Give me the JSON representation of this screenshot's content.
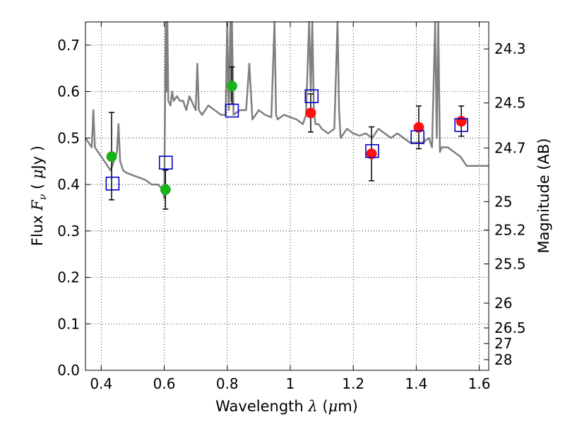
{
  "chart_data": {
    "type": "scatter",
    "xlabel": "Wavelength  λ (μm)",
    "ylabel": "Flux  Fν  ( μJy )",
    "y2label": "Magnitude (AB)",
    "xlim": [
      0.35,
      1.63
    ],
    "ylim": [
      0.0,
      0.75
    ],
    "xticks": [
      "0.4",
      "0.6",
      "0.8",
      "1",
      "1.2",
      "1.4",
      "1.6"
    ],
    "xtick_values": [
      0.4,
      0.6,
      0.8,
      1.0,
      1.2,
      1.4,
      1.6
    ],
    "yticks": [
      "0.0",
      "0.1",
      "0.2",
      "0.3",
      "0.4",
      "0.5",
      "0.6",
      "0.7"
    ],
    "ytick_values": [
      0.0,
      0.1,
      0.2,
      0.3,
      0.4,
      0.5,
      0.6,
      0.7
    ],
    "y2ticks": [
      "24.3",
      "24.5",
      "24.7",
      "25",
      "25.2",
      "25.5",
      "26",
      "26.5",
      "27",
      "28"
    ],
    "y2tick_values": [
      24.3,
      24.5,
      24.7,
      25.0,
      25.2,
      25.5,
      26.0,
      26.5,
      27.0,
      28.0
    ],
    "grid": true,
    "colors": {
      "spectrum": "#7f7f7f",
      "green_points": "#19b219",
      "red_points": "#ff1010",
      "model_squares": "#0000cc",
      "errorbars": "#000000"
    },
    "series": [
      {
        "kind": "line",
        "x": [
          0.35,
          0.36,
          0.37,
          0.375,
          0.38,
          0.39,
          0.4,
          0.41,
          0.42,
          0.43,
          0.44,
          0.45,
          0.455,
          0.46,
          0.47,
          0.48,
          0.5,
          0.52,
          0.54,
          0.56,
          0.58,
          0.595,
          0.6,
          0.605,
          0.607,
          0.61,
          0.613,
          0.62,
          0.625,
          0.63,
          0.64,
          0.65,
          0.66,
          0.67,
          0.68,
          0.7,
          0.705,
          0.71,
          0.72,
          0.74,
          0.76,
          0.78,
          0.795,
          0.8,
          0.805,
          0.81,
          0.813,
          0.815,
          0.82,
          0.84,
          0.86,
          0.87,
          0.88,
          0.9,
          0.92,
          0.94,
          0.95,
          0.955,
          0.96,
          0.98,
          1.0,
          1.02,
          1.04,
          1.05,
          1.06,
          1.065,
          1.07,
          1.075,
          1.08,
          1.09,
          1.1,
          1.12,
          1.14,
          1.15,
          1.155,
          1.16,
          1.18,
          1.2,
          1.22,
          1.24,
          1.26,
          1.28,
          1.3,
          1.32,
          1.34,
          1.36,
          1.38,
          1.4,
          1.42,
          1.44,
          1.45,
          1.46,
          1.465,
          1.47,
          1.475,
          1.48,
          1.5,
          1.52,
          1.54,
          1.56,
          1.58,
          1.6,
          1.63
        ],
        "y": [
          0.5,
          0.49,
          0.48,
          0.56,
          0.48,
          0.47,
          0.46,
          0.45,
          0.44,
          0.43,
          0.45,
          0.47,
          0.53,
          0.45,
          0.43,
          0.425,
          0.42,
          0.415,
          0.41,
          0.4,
          0.4,
          0.39,
          0.37,
          0.75,
          0.6,
          0.75,
          0.58,
          0.57,
          0.6,
          0.58,
          0.59,
          0.58,
          0.58,
          0.56,
          0.59,
          0.56,
          0.66,
          0.56,
          0.55,
          0.57,
          0.56,
          0.55,
          0.55,
          0.75,
          0.56,
          0.75,
          0.58,
          0.75,
          0.55,
          0.56,
          0.56,
          0.66,
          0.54,
          0.56,
          0.55,
          0.545,
          0.75,
          0.55,
          0.54,
          0.55,
          0.545,
          0.54,
          0.53,
          0.55,
          0.75,
          0.6,
          0.75,
          0.56,
          0.53,
          0.53,
          0.52,
          0.51,
          0.52,
          0.75,
          0.56,
          0.5,
          0.52,
          0.51,
          0.505,
          0.51,
          0.5,
          0.52,
          0.51,
          0.5,
          0.51,
          0.5,
          0.49,
          0.49,
          0.49,
          0.5,
          0.48,
          0.75,
          0.5,
          0.75,
          0.47,
          0.48,
          0.48,
          0.47,
          0.46,
          0.44,
          0.44,
          0.44,
          0.44
        ]
      },
      {
        "kind": "points_with_errors",
        "color_key": "green_points",
        "x": [
          0.433,
          0.604,
          0.815
        ],
        "y": [
          0.46,
          0.389,
          0.612
        ],
        "yerr_low": [
          0.093,
          0.042,
          0.039
        ],
        "yerr_high": [
          0.095,
          0.042,
          0.041
        ]
      },
      {
        "kind": "points_with_errors",
        "color_key": "red_points",
        "x": [
          1.065,
          1.258,
          1.408,
          1.543
        ],
        "y": [
          0.554,
          0.466,
          0.523,
          0.536
        ],
        "yerr_low": [
          0.041,
          0.058,
          0.046,
          0.032
        ],
        "yerr_high": [
          0.041,
          0.058,
          0.046,
          0.033
        ]
      },
      {
        "kind": "open_squares",
        "color_key": "model_squares",
        "x": [
          0.436,
          0.605,
          0.815,
          1.068,
          1.26,
          1.404,
          1.543
        ],
        "y": [
          0.402,
          0.447,
          0.559,
          0.59,
          0.472,
          0.502,
          0.528
        ]
      }
    ]
  }
}
